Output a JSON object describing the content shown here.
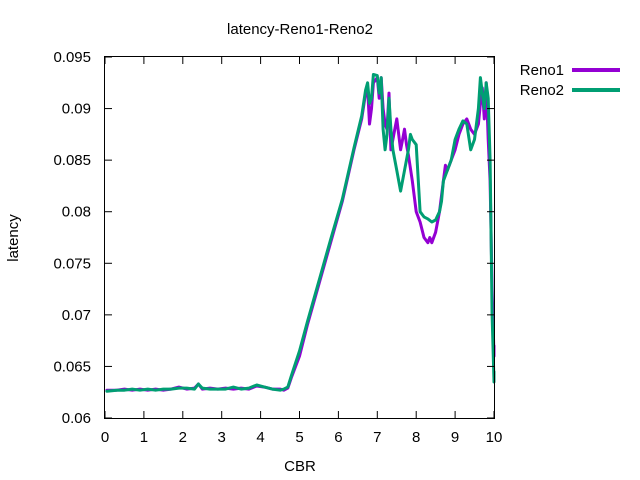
{
  "chart_data": {
    "type": "line",
    "title": "latency-Reno1-Reno2",
    "xlabel": "CBR",
    "ylabel": "latency",
    "xlim": [
      0,
      10
    ],
    "ylim": [
      0.06,
      0.095
    ],
    "x_ticks": [
      0,
      1,
      2,
      3,
      4,
      5,
      6,
      7,
      8,
      9,
      10
    ],
    "y_ticks": [
      0.06,
      0.065,
      0.07,
      0.075,
      0.08,
      0.085,
      0.09,
      0.095
    ],
    "x_tick_labels": [
      "0",
      "1",
      "2",
      "3",
      "4",
      "5",
      "6",
      "7",
      "8",
      "9",
      "10"
    ],
    "y_tick_labels": [
      "0.06",
      "0.065",
      "0.07",
      "0.075",
      "0.08",
      "0.085",
      "0.09",
      "0.095"
    ],
    "grid": false,
    "legend_position": "outside-top-right",
    "series": [
      {
        "name": "Reno1",
        "color": "#9400d3",
        "points": [
          [
            0.05,
            0.0627
          ],
          [
            0.3,
            0.0627
          ],
          [
            0.5,
            0.0628
          ],
          [
            0.7,
            0.0627
          ],
          [
            0.9,
            0.0628
          ],
          [
            1.1,
            0.0627
          ],
          [
            1.3,
            0.0628
          ],
          [
            1.5,
            0.0627
          ],
          [
            1.7,
            0.0628
          ],
          [
            1.9,
            0.063
          ],
          [
            2.1,
            0.0628
          ],
          [
            2.3,
            0.0629
          ],
          [
            2.4,
            0.0633
          ],
          [
            2.5,
            0.0628
          ],
          [
            2.7,
            0.0629
          ],
          [
            2.9,
            0.0628
          ],
          [
            3.1,
            0.0629
          ],
          [
            3.3,
            0.0628
          ],
          [
            3.5,
            0.0629
          ],
          [
            3.7,
            0.0628
          ],
          [
            3.9,
            0.0631
          ],
          [
            4.1,
            0.063
          ],
          [
            4.3,
            0.0628
          ],
          [
            4.5,
            0.0628
          ],
          [
            4.6,
            0.0627
          ],
          [
            4.7,
            0.0629
          ],
          [
            4.8,
            0.064
          ],
          [
            5.0,
            0.066
          ],
          [
            5.2,
            0.069
          ],
          [
            5.5,
            0.073
          ],
          [
            5.8,
            0.077
          ],
          [
            6.1,
            0.081
          ],
          [
            6.4,
            0.086
          ],
          [
            6.6,
            0.089
          ],
          [
            6.7,
            0.0915
          ],
          [
            6.75,
            0.092
          ],
          [
            6.8,
            0.0885
          ],
          [
            6.85,
            0.09
          ],
          [
            6.9,
            0.0925
          ],
          [
            7.0,
            0.093
          ],
          [
            7.05,
            0.091
          ],
          [
            7.1,
            0.093
          ],
          [
            7.15,
            0.09
          ],
          [
            7.2,
            0.0885
          ],
          [
            7.25,
            0.088
          ],
          [
            7.3,
            0.0915
          ],
          [
            7.35,
            0.086
          ],
          [
            7.4,
            0.087
          ],
          [
            7.45,
            0.088
          ],
          [
            7.5,
            0.089
          ],
          [
            7.55,
            0.0875
          ],
          [
            7.6,
            0.086
          ],
          [
            7.65,
            0.087
          ],
          [
            7.7,
            0.088
          ],
          [
            7.75,
            0.0865
          ],
          [
            7.8,
            0.0855
          ],
          [
            7.9,
            0.083
          ],
          [
            8.0,
            0.08
          ],
          [
            8.1,
            0.079
          ],
          [
            8.2,
            0.0775
          ],
          [
            8.3,
            0.077
          ],
          [
            8.35,
            0.0775
          ],
          [
            8.4,
            0.077
          ],
          [
            8.5,
            0.078
          ],
          [
            8.6,
            0.08
          ],
          [
            8.7,
            0.083
          ],
          [
            8.75,
            0.0845
          ],
          [
            8.8,
            0.084
          ],
          [
            8.9,
            0.085
          ],
          [
            9.0,
            0.086
          ],
          [
            9.1,
            0.0875
          ],
          [
            9.2,
            0.0885
          ],
          [
            9.3,
            0.089
          ],
          [
            9.4,
            0.088
          ],
          [
            9.5,
            0.0875
          ],
          [
            9.6,
            0.0885
          ],
          [
            9.65,
            0.0905
          ],
          [
            9.7,
            0.092
          ],
          [
            9.75,
            0.089
          ],
          [
            9.8,
            0.0925
          ],
          [
            9.85,
            0.087
          ],
          [
            9.9,
            0.083
          ],
          [
            9.95,
            0.0725
          ],
          [
            10.0,
            0.066
          ],
          [
            10.0,
            0.067
          ]
        ]
      },
      {
        "name": "Reno2",
        "color": "#009e73",
        "points": [
          [
            0.05,
            0.0626
          ],
          [
            0.3,
            0.0627
          ],
          [
            0.5,
            0.0627
          ],
          [
            0.7,
            0.0628
          ],
          [
            0.9,
            0.0627
          ],
          [
            1.1,
            0.0628
          ],
          [
            1.3,
            0.0627
          ],
          [
            1.5,
            0.0628
          ],
          [
            1.7,
            0.0628
          ],
          [
            1.9,
            0.0629
          ],
          [
            2.1,
            0.0629
          ],
          [
            2.3,
            0.0628
          ],
          [
            2.4,
            0.0633
          ],
          [
            2.5,
            0.0629
          ],
          [
            2.7,
            0.0628
          ],
          [
            2.9,
            0.0628
          ],
          [
            3.1,
            0.0628
          ],
          [
            3.3,
            0.063
          ],
          [
            3.5,
            0.0628
          ],
          [
            3.7,
            0.0629
          ],
          [
            3.9,
            0.0632
          ],
          [
            4.1,
            0.063
          ],
          [
            4.3,
            0.0628
          ],
          [
            4.5,
            0.0627
          ],
          [
            4.6,
            0.0628
          ],
          [
            4.7,
            0.063
          ],
          [
            4.8,
            0.0642
          ],
          [
            5.0,
            0.0665
          ],
          [
            5.2,
            0.0693
          ],
          [
            5.5,
            0.0733
          ],
          [
            5.8,
            0.0773
          ],
          [
            6.1,
            0.0812
          ],
          [
            6.4,
            0.0862
          ],
          [
            6.6,
            0.0893
          ],
          [
            6.7,
            0.0918
          ],
          [
            6.75,
            0.0925
          ],
          [
            6.8,
            0.0905
          ],
          [
            6.85,
            0.091
          ],
          [
            6.9,
            0.0933
          ],
          [
            7.0,
            0.0932
          ],
          [
            7.05,
            0.0915
          ],
          [
            7.1,
            0.093
          ],
          [
            7.15,
            0.088
          ],
          [
            7.2,
            0.086
          ],
          [
            7.25,
            0.0875
          ],
          [
            7.3,
            0.091
          ],
          [
            7.35,
            0.088
          ],
          [
            7.4,
            0.086
          ],
          [
            7.5,
            0.084
          ],
          [
            7.6,
            0.082
          ],
          [
            7.7,
            0.084
          ],
          [
            7.8,
            0.086
          ],
          [
            7.85,
            0.0875
          ],
          [
            7.9,
            0.087
          ],
          [
            8.0,
            0.0865
          ],
          [
            8.1,
            0.08
          ],
          [
            8.2,
            0.0795
          ],
          [
            8.3,
            0.0793
          ],
          [
            8.4,
            0.079
          ],
          [
            8.5,
            0.0792
          ],
          [
            8.6,
            0.08
          ],
          [
            8.65,
            0.081
          ],
          [
            8.7,
            0.083
          ],
          [
            8.8,
            0.084
          ],
          [
            8.9,
            0.085
          ],
          [
            9.0,
            0.087
          ],
          [
            9.1,
            0.088
          ],
          [
            9.2,
            0.0888
          ],
          [
            9.3,
            0.0885
          ],
          [
            9.4,
            0.086
          ],
          [
            9.5,
            0.087
          ],
          [
            9.6,
            0.09
          ],
          [
            9.65,
            0.093
          ],
          [
            9.7,
            0.0915
          ],
          [
            9.75,
            0.09
          ],
          [
            9.8,
            0.0925
          ],
          [
            9.85,
            0.091
          ],
          [
            9.9,
            0.085
          ],
          [
            9.95,
            0.07
          ],
          [
            10.0,
            0.0635
          ],
          [
            10.0,
            0.0645
          ]
        ]
      }
    ]
  }
}
